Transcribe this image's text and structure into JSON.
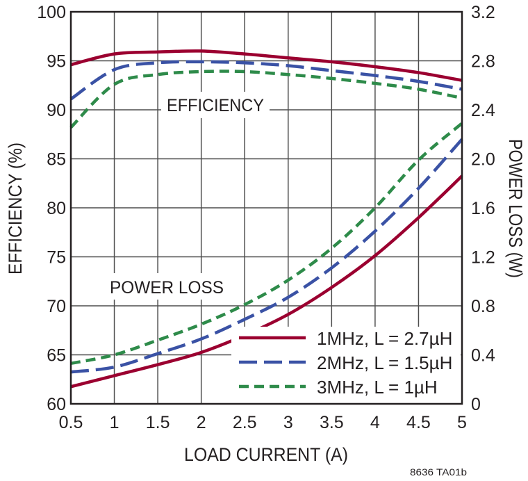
{
  "chart_data": {
    "type": "line",
    "xlabel": "LOAD CURRENT (A)",
    "ylabel": "EFFICIENCY (%)",
    "y2label": "POWER LOSS (W)",
    "xlim": [
      0.5,
      5
    ],
    "ylim": [
      60,
      100
    ],
    "y2lim": [
      0,
      3.2
    ],
    "grid": true,
    "legend_position": "bottom-right",
    "x_ticks": [
      "0.5",
      "1",
      "1.5",
      "2",
      "2.5",
      "3",
      "3.5",
      "4",
      "4.5",
      "5"
    ],
    "y_ticks": [
      "60",
      "65",
      "70",
      "75",
      "80",
      "85",
      "90",
      "95",
      "100"
    ],
    "y2_ticks": [
      "0",
      "0.4",
      "0.8",
      "1.2",
      "1.6",
      "2.0",
      "2.4",
      "2.8",
      "3.2"
    ],
    "annotations": {
      "efficiency": "EFFICIENCY",
      "power_loss": "POWER LOSS"
    },
    "footnote": "8636 TA01b",
    "x": [
      0.5,
      1,
      1.5,
      2,
      2.5,
      3,
      3.5,
      4,
      4.5,
      5
    ],
    "series": [
      {
        "name": "1MHz, L = 2.7µH",
        "color": "#9b0030",
        "dash": "solid",
        "efficiency": [
          94.6,
          95.7,
          95.9,
          96.0,
          95.7,
          95.3,
          94.9,
          94.4,
          93.8,
          93.0
        ],
        "power_loss": [
          0.14,
          0.23,
          0.32,
          0.42,
          0.56,
          0.73,
          0.95,
          1.21,
          1.52,
          1.86
        ]
      },
      {
        "name": "2MHz, L = 1.5µH",
        "color": "#3a52a5",
        "dash": "long-dash",
        "efficiency": [
          91.1,
          94.1,
          94.8,
          94.9,
          94.8,
          94.5,
          94.0,
          93.5,
          92.9,
          92.1
        ],
        "power_loss": [
          0.26,
          0.3,
          0.41,
          0.53,
          0.69,
          0.87,
          1.11,
          1.41,
          1.76,
          2.16
        ]
      },
      {
        "name": "3MHz, L = 1µH",
        "color": "#2e8b4a",
        "dash": "short-dash",
        "efficiency": [
          88.2,
          92.6,
          93.6,
          93.9,
          93.9,
          93.6,
          93.2,
          92.7,
          92.1,
          91.2
        ],
        "power_loss": [
          0.33,
          0.4,
          0.52,
          0.65,
          0.81,
          1.01,
          1.27,
          1.6,
          1.99,
          2.29
        ]
      }
    ]
  }
}
